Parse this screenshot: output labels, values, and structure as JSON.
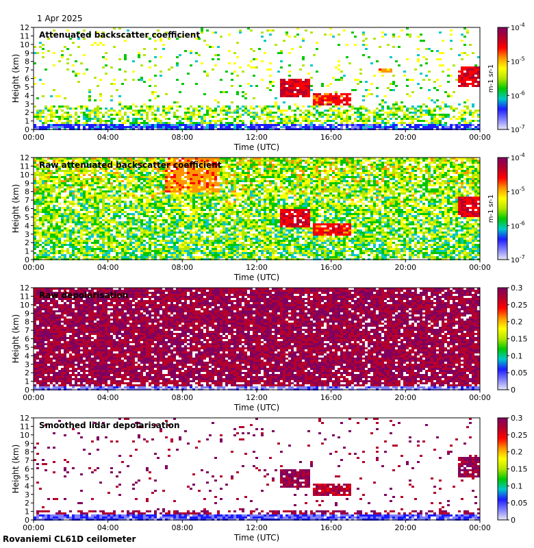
{
  "date_label": "1 Apr 2025",
  "footer": "Rovaniemi CL61D ceilometer",
  "colors": {
    "scale": [
      "#e6e6f7",
      "#7f7fff",
      "#1c1cff",
      "#00c8c8",
      "#00c800",
      "#b4e600",
      "#ffff00",
      "#ff9600",
      "#ff0000",
      "#b4002d",
      "#800060"
    ]
  },
  "chart_data": [
    {
      "type": "heatmap",
      "title": "Attenuated backscatter coefficient",
      "xlabel": "Time (UTC)",
      "ylabel": "Height (km)",
      "xticks": [
        "00:00",
        "04:00",
        "08:00",
        "12:00",
        "16:00",
        "20:00",
        "00:00"
      ],
      "yticks": [
        "0",
        "1",
        "2",
        "3",
        "4",
        "5",
        "6",
        "7",
        "8",
        "9",
        "10",
        "11",
        "12"
      ],
      "ylim": [
        0,
        12
      ],
      "colorbar": {
        "ticks": [
          "10-4",
          "10-5",
          "10-6",
          "10-7"
        ],
        "scale": "log",
        "range": [
          1e-07,
          0.0001
        ],
        "label": "m-1 sr-1"
      },
      "features": [
        {
          "t0": 13.2,
          "t1": 14.8,
          "h0": 4.0,
          "h1": 6.2,
          "level": 0.85
        },
        {
          "t0": 15.0,
          "t1": 17.0,
          "h0": 3.0,
          "h1": 4.3,
          "level": 0.8
        },
        {
          "t0": 18.3,
          "t1": 19.2,
          "h0": 6.9,
          "h1": 7.4,
          "level": 0.7
        },
        {
          "t0": 22.8,
          "t1": 24.0,
          "h0": 5.2,
          "h1": 7.5,
          "level": 0.85
        },
        {
          "t0": 0.0,
          "t1": 24.0,
          "h0": 0.0,
          "h1": 0.8,
          "level": 0.2
        }
      ]
    },
    {
      "type": "heatmap",
      "title": "Raw attenuated backscatter coefficient",
      "xlabel": "Time (UTC)",
      "ylabel": "Height (km)",
      "xticks": [
        "00:00",
        "04:00",
        "08:00",
        "12:00",
        "16:00",
        "20:00",
        "00:00"
      ],
      "yticks": [
        "0",
        "1",
        "2",
        "3",
        "4",
        "5",
        "6",
        "7",
        "8",
        "9",
        "10",
        "11",
        "12"
      ],
      "ylim": [
        0,
        12
      ],
      "colorbar": {
        "ticks": [
          "10-4",
          "10-5",
          "10-6",
          "10-7"
        ],
        "scale": "log",
        "range": [
          1e-07,
          0.0001
        ],
        "label": "m-1 sr-1"
      },
      "features": [
        {
          "t0": 13.2,
          "t1": 14.8,
          "h0": 4.0,
          "h1": 6.2,
          "level": 0.85
        },
        {
          "t0": 15.0,
          "t1": 17.0,
          "h0": 3.0,
          "h1": 4.3,
          "level": 0.8
        },
        {
          "t0": 22.8,
          "t1": 24.0,
          "h0": 5.2,
          "h1": 7.5,
          "level": 0.85
        },
        {
          "t0": 7.0,
          "t1": 10.0,
          "h0": 8.0,
          "h1": 12.0,
          "level": 0.7
        }
      ]
    },
    {
      "type": "heatmap",
      "title": "Raw depolarisation",
      "xlabel": "Time (UTC)",
      "ylabel": "Height (km)",
      "xticks": [
        "00:00",
        "04:00",
        "08:00",
        "12:00",
        "16:00",
        "20:00",
        "00:00"
      ],
      "yticks": [
        "0",
        "1",
        "2",
        "3",
        "4",
        "5",
        "6",
        "7",
        "8",
        "9",
        "10",
        "11",
        "12"
      ],
      "ylim": [
        0,
        12
      ],
      "colorbar": {
        "ticks": [
          "0.3",
          "0.25",
          "0.2",
          "0.15",
          "0.1",
          "0.05",
          "0"
        ],
        "scale": "linear",
        "range": [
          0,
          0.3
        ],
        "label": ""
      },
      "features": [
        {
          "t0": 0.0,
          "t1": 24.0,
          "h0": 1.0,
          "h1": 12.0,
          "level": 0.95
        },
        {
          "t0": 0.0,
          "t1": 24.0,
          "h0": 0.0,
          "h1": 0.6,
          "level": 0.1
        }
      ]
    },
    {
      "type": "heatmap",
      "title": "Smoothed lidar depolarisation",
      "xlabel": "Time (UTC)",
      "ylabel": "Height (km)",
      "xticks": [
        "00:00",
        "04:00",
        "08:00",
        "12:00",
        "16:00",
        "20:00",
        "00:00"
      ],
      "yticks": [
        "0",
        "1",
        "2",
        "3",
        "4",
        "5",
        "6",
        "7",
        "8",
        "9",
        "10",
        "11",
        "12"
      ],
      "ylim": [
        0,
        12
      ],
      "colorbar": {
        "ticks": [
          "0.3",
          "0.25",
          "0.2",
          "0.15",
          "0.1",
          "0.05",
          "0"
        ],
        "scale": "linear",
        "range": [
          0,
          0.3
        ],
        "label": ""
      },
      "features": [
        {
          "t0": 13.2,
          "t1": 14.8,
          "h0": 4.0,
          "h1": 6.2,
          "level": 0.95
        },
        {
          "t0": 15.0,
          "t1": 17.0,
          "h0": 3.0,
          "h1": 4.3,
          "level": 0.9
        },
        {
          "t0": 22.8,
          "t1": 24.0,
          "h0": 5.2,
          "h1": 7.5,
          "level": 0.95
        },
        {
          "t0": 0.0,
          "t1": 24.0,
          "h0": 0.0,
          "h1": 0.8,
          "level": 0.15
        }
      ]
    }
  ]
}
